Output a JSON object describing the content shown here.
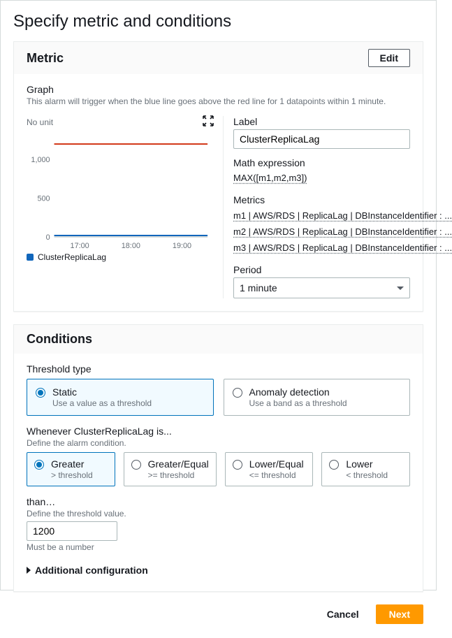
{
  "page": {
    "title": "Specify metric and conditions"
  },
  "metric_panel": {
    "heading": "Metric",
    "edit_label": "Edit",
    "graph_label": "Graph",
    "graph_hint": "This alarm will trigger when the blue line goes above the red line for 1 datapoints within 1 minute.",
    "yaxis_label": "No unit",
    "legend_label": "ClusterReplicaLag",
    "chart": {
      "type": "line",
      "x_ticks": [
        "17:00",
        "18:00",
        "19:00"
      ],
      "y_ticks": [
        0,
        500,
        1000
      ],
      "ylim": [
        0,
        1300
      ],
      "threshold_value": 1200,
      "series_value": 18,
      "series_color": "#1166bb",
      "threshold_color": "#d13212",
      "axis_color": "#aab7b8",
      "tick_text_color": "#687078",
      "tick_fontsize": 11
    },
    "right": {
      "label_heading": "Label",
      "label_value": "ClusterReplicaLag",
      "math_heading": "Math expression",
      "math_value": "MAX([m1,m2,m3])",
      "metrics_heading": "Metrics",
      "metrics": [
        "m1 | AWS/RDS | ReplicaLag | DBInstanceIdentifier : ...",
        "m2 | AWS/RDS | ReplicaLag | DBInstanceIdentifier : ...",
        "m3 | AWS/RDS | ReplicaLag | DBInstanceIdentifier : ..."
      ],
      "period_heading": "Period",
      "period_value": "1 minute"
    }
  },
  "conditions_panel": {
    "heading": "Conditions",
    "threshold_type_label": "Threshold type",
    "types": {
      "static": {
        "title": "Static",
        "sub": "Use a value as a threshold",
        "selected": true
      },
      "anomaly": {
        "title": "Anomaly detection",
        "sub": "Use a band as a threshold",
        "selected": false
      }
    },
    "whenever_label": "Whenever ClusterReplicaLag is...",
    "whenever_hint": "Define the alarm condition.",
    "comparisons": {
      "greater": {
        "title": "Greater",
        "sub": "> threshold",
        "selected": true
      },
      "gte": {
        "title": "Greater/Equal",
        "sub": ">= threshold",
        "selected": false
      },
      "lte": {
        "title": "Lower/Equal",
        "sub": "<= threshold",
        "selected": false
      },
      "lower": {
        "title": "Lower",
        "sub": "< threshold",
        "selected": false
      }
    },
    "than_label": "than…",
    "than_hint": "Define the threshold value.",
    "than_value": "1200",
    "than_note": "Must be a number",
    "additional_label": "Additional configuration"
  },
  "footer": {
    "cancel": "Cancel",
    "next": "Next"
  },
  "colors": {
    "accent_blue": "#0073bb",
    "accent_orange": "#ff9900",
    "border_gray": "#aab7b8",
    "text_muted": "#687078"
  }
}
